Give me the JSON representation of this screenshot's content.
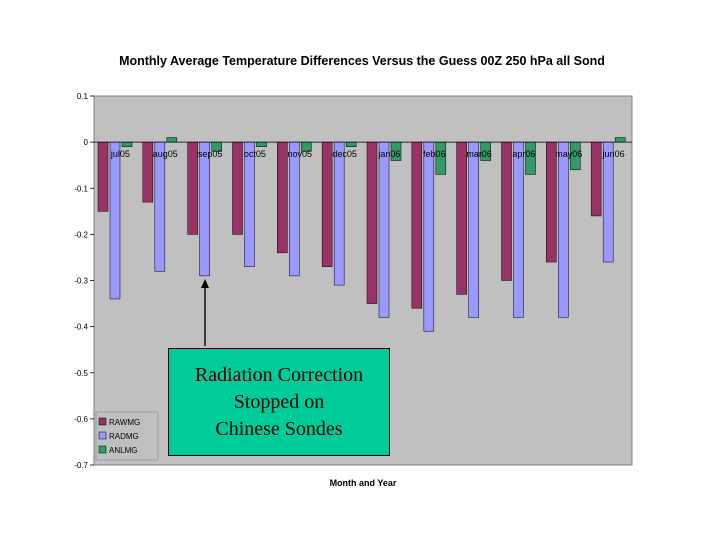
{
  "chart_data": {
    "type": "bar",
    "title": "Monthly Average Temperature Differences Versus the Guess 00Z 250 hPa all Sond",
    "xlabel": "Month and Year",
    "ylabel": "",
    "ylim": [
      -0.7,
      0.1
    ],
    "yticks": [
      {
        "value": 0.1,
        "label": "0.1"
      },
      {
        "value": 0,
        "label": "0"
      },
      {
        "value": -0.1,
        "label": "-0.1"
      },
      {
        "value": -0.2,
        "label": "-0.2"
      },
      {
        "value": -0.3,
        "label": "-0.3"
      },
      {
        "value": -0.4,
        "label": "-0.4"
      },
      {
        "value": -0.5,
        "label": "-0.5"
      },
      {
        "value": -0.6,
        "label": "-0.6"
      },
      {
        "value": -0.7,
        "label": "-0.7"
      }
    ],
    "categories": [
      "jul05",
      "aug05",
      "sep05",
      "oct05",
      "nov05",
      "dec05",
      "jan06",
      "feb06",
      "mar06",
      "apr06",
      "may06",
      "jun06"
    ],
    "series": [
      {
        "name": "RAWMG",
        "color": "#993366",
        "values": [
          -0.15,
          -0.13,
          -0.2,
          -0.2,
          -0.24,
          -0.27,
          -0.35,
          -0.36,
          -0.33,
          -0.3,
          -0.26,
          -0.16
        ]
      },
      {
        "name": "RADMG",
        "color": "#9999ff",
        "values": [
          -0.34,
          -0.28,
          -0.29,
          -0.27,
          -0.29,
          -0.31,
          -0.38,
          -0.41,
          -0.38,
          -0.38,
          -0.38,
          -0.26
        ]
      },
      {
        "name": "ANLMG",
        "color": "#339966",
        "values": [
          -0.01,
          0.01,
          -0.02,
          -0.01,
          -0.02,
          -0.01,
          -0.04,
          -0.07,
          -0.04,
          -0.07,
          -0.06,
          0.01
        ]
      }
    ],
    "grid": false,
    "legend_position": "bottom-left",
    "plot_background": "#c0c0c0"
  },
  "annotation": {
    "text": "Radiation Correction\nStopped on\nChinese Sondes",
    "points_to": "sep05",
    "box_color": "#00cc99"
  }
}
